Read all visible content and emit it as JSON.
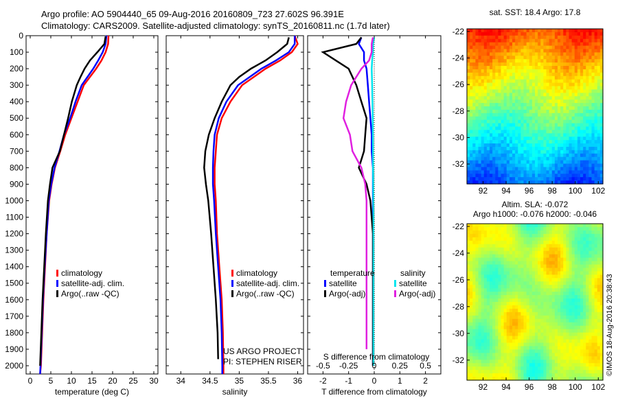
{
  "header": {
    "line1": "Argo profile: AO 5904440_65 09-Aug-2016 20160809_723 27.602S 96.391E",
    "line2": "Climatology: CARS2009. Satellite-adjusted climatology: synTS_20160811.nc (1.7d later)"
  },
  "colors": {
    "climatology": "#ff0000",
    "satellite": "#0000ff",
    "argo": "#000000",
    "satellite_s": "#00e5ee",
    "argo_s": "#e020e0"
  },
  "depth_axis": {
    "ylim": [
      0,
      2050
    ],
    "ticks": [
      0,
      100,
      200,
      300,
      400,
      500,
      600,
      700,
      800,
      900,
      1000,
      1100,
      1200,
      1300,
      1400,
      1500,
      1600,
      1700,
      1800,
      1900,
      2000
    ]
  },
  "chart_data": [
    {
      "id": "temp",
      "type": "line",
      "xlabel": "temperature (deg C)",
      "xlim": [
        -1,
        31
      ],
      "xticks": [
        0,
        5,
        10,
        15,
        20,
        25,
        30
      ],
      "xticklabels": [
        "0",
        "5",
        "10",
        "15",
        "20",
        "25",
        "30"
      ],
      "legend": [
        "climatology",
        "satellite-adj. clim.",
        "Argo(..raw -QC)"
      ],
      "series": [
        {
          "name": "climatology",
          "color": "#ff0000",
          "x": [
            19.0,
            18.9,
            18.3,
            17.3,
            16.0,
            14.5,
            13.0,
            11.5,
            10.0,
            8.5,
            7.3,
            6.0,
            5.2,
            4.6,
            4.0,
            3.6,
            3.2,
            2.9,
            2.6,
            2.4
          ],
          "y": [
            0,
            50,
            100,
            150,
            200,
            250,
            300,
            400,
            500,
            600,
            700,
            800,
            900,
            1000,
            1200,
            1400,
            1600,
            1800,
            2000,
            2050
          ]
        },
        {
          "name": "satellite-adj. clim.",
          "color": "#0000ff",
          "x": [
            18.5,
            18.3,
            17.6,
            16.5,
            15.3,
            13.9,
            12.5,
            11.0,
            9.7,
            8.2,
            7.1,
            5.9,
            5.1,
            4.5,
            4.0,
            3.5,
            3.1,
            2.8,
            2.5,
            2.4
          ],
          "y": [
            0,
            50,
            100,
            150,
            200,
            250,
            300,
            400,
            500,
            600,
            700,
            800,
            900,
            1000,
            1200,
            1400,
            1600,
            1800,
            2000,
            2050
          ]
        },
        {
          "name": "Argo(..raw -QC)",
          "color": "#000000",
          "x": [
            18.3,
            18.0,
            16.3,
            14.5,
            13.2,
            12.2,
            11.3,
            10.1,
            9.2,
            8.2,
            7.2,
            5.4,
            4.8,
            4.3,
            3.8,
            3.4,
            3.0,
            2.7,
            2.4
          ],
          "y": [
            5,
            50,
            100,
            150,
            200,
            250,
            300,
            400,
            500,
            600,
            700,
            800,
            900,
            1000,
            1200,
            1400,
            1600,
            1800,
            2000
          ]
        }
      ]
    },
    {
      "id": "sal",
      "type": "line",
      "xlabel": "salinity",
      "xlim": [
        33.75,
        36.1
      ],
      "xticks": [
        34,
        34.5,
        35,
        35.5,
        36
      ],
      "xticklabels": [
        "34",
        "34.5",
        "35",
        "35.5",
        "36"
      ],
      "legend": [
        "climatology",
        "satellite-adj. clim.",
        "Argo(..raw -QC)"
      ],
      "annotation": [
        "US ARGO PROJECT",
        "PI: STEPHEN RISER"
      ],
      "series": [
        {
          "name": "climatology",
          "color": "#ff0000",
          "x": [
            35.95,
            36.0,
            35.9,
            35.7,
            35.45,
            35.25,
            35.05,
            34.85,
            34.7,
            34.62,
            34.6,
            34.58,
            34.58,
            34.6,
            34.62,
            34.66,
            34.7,
            34.72,
            34.73,
            34.73
          ],
          "y": [
            0,
            50,
            100,
            150,
            200,
            250,
            300,
            400,
            500,
            600,
            700,
            800,
            900,
            1000,
            1200,
            1400,
            1600,
            1800,
            2000,
            2050
          ]
        },
        {
          "name": "satellite-adj. clim.",
          "color": "#0000ff",
          "x": [
            35.95,
            35.95,
            35.85,
            35.63,
            35.38,
            35.18,
            34.98,
            34.78,
            34.65,
            34.58,
            34.56,
            34.55,
            34.55,
            34.57,
            34.6,
            34.64,
            34.68,
            34.7,
            34.71,
            34.71
          ],
          "y": [
            0,
            50,
            100,
            150,
            200,
            250,
            300,
            400,
            500,
            600,
            700,
            800,
            900,
            1000,
            1200,
            1400,
            1600,
            1800,
            2000,
            2050
          ]
        },
        {
          "name": "Argo(..raw -QC)",
          "color": "#000000",
          "x": [
            35.85,
            35.82,
            35.65,
            35.45,
            35.2,
            35.0,
            34.85,
            34.7,
            34.58,
            34.48,
            34.42,
            34.4,
            34.43,
            34.47,
            34.52,
            34.56,
            34.6,
            34.63,
            34.64
          ],
          "y": [
            10,
            50,
            100,
            150,
            200,
            250,
            300,
            400,
            500,
            600,
            700,
            800,
            900,
            1000,
            1200,
            1400,
            1600,
            1800,
            1960
          ]
        }
      ]
    },
    {
      "id": "diff",
      "type": "line",
      "xlabel": "T difference from climatology",
      "xlabel_top": "S difference from climatology",
      "xlim": [
        -2.6,
        2.6
      ],
      "xticks": [
        -2,
        -1,
        0,
        1,
        2
      ],
      "xticklabels": [
        "-2",
        "-1",
        "0",
        "1",
        "2"
      ],
      "s_xticks": [
        -2,
        -1,
        0,
        1,
        2
      ],
      "s_xticklabels": [
        "-0.5",
        "-0.25",
        "0",
        "0.25",
        "0.5"
      ],
      "legend_titles": [
        "temperature",
        "salinity"
      ],
      "legend_t": [
        "satellite",
        "Argo(-adj)"
      ],
      "legend_s": [
        "satellite",
        "Argo(-adj)"
      ],
      "series": [
        {
          "name": "T satellite",
          "color": "#0000ff",
          "x": [
            -0.5,
            -0.6,
            -0.4,
            -0.4,
            -0.3,
            -0.25,
            -0.2,
            -0.15,
            -0.1,
            -0.1,
            -0.05,
            -0.05,
            -0.05,
            -0.05,
            -0.05,
            -0.05,
            -0.05
          ],
          "y": [
            10,
            50,
            100,
            150,
            200,
            300,
            400,
            500,
            600,
            700,
            800,
            1000,
            1200,
            1400,
            1600,
            1800,
            2000
          ]
        },
        {
          "name": "T Argo(-adj)",
          "color": "#000000",
          "x": [
            -0.5,
            -0.7,
            -2.0,
            -1.5,
            -1.0,
            -0.7,
            -0.5,
            -0.3,
            -0.35,
            -0.4,
            -0.6,
            -0.3,
            -0.15,
            -0.05,
            -0.05,
            -0.05,
            -0.05,
            -0.05
          ],
          "y": [
            10,
            50,
            100,
            150,
            200,
            300,
            400,
            500,
            600,
            700,
            800,
            900,
            1000,
            1200,
            1400,
            1600,
            1800,
            2000
          ]
        },
        {
          "name": "S satellite",
          "color": "#00e5ee",
          "x": [
            0.0,
            -0.05,
            -0.05,
            -0.08,
            -0.1,
            -0.08,
            -0.06,
            -0.05,
            -0.04,
            -0.03,
            -0.03,
            -0.03,
            -0.03,
            -0.03
          ],
          "y": [
            10,
            50,
            100,
            150,
            200,
            300,
            500,
            700,
            900,
            1100,
            1300,
            1500,
            1800,
            2000
          ]
        },
        {
          "name": "S Argo(-adj)",
          "color": "#e020e0",
          "x": [
            -0.05,
            -0.1,
            -0.1,
            -0.2,
            -0.5,
            -0.9,
            -1.1,
            -1.2,
            -0.95,
            -0.85,
            -0.5,
            -0.35,
            -0.3,
            -0.3,
            -0.3,
            -0.3,
            -0.3
          ],
          "y": [
            10,
            50,
            100,
            150,
            200,
            300,
            400,
            500,
            600,
            700,
            800,
            900,
            1000,
            1200,
            1400,
            1600,
            1900
          ]
        }
      ]
    },
    {
      "id": "sst_map",
      "type": "heatmap",
      "title": "sat. SST: 18.4  Argo: 17.8",
      "xticks": [
        92,
        94,
        96,
        98,
        100,
        102
      ],
      "xlim": [
        90.6,
        102.4
      ],
      "yticks": [
        -22,
        -24,
        -26,
        -28,
        -30,
        -32
      ],
      "ylim": [
        -33.5,
        -21.8
      ]
    },
    {
      "id": "sla_map",
      "type": "heatmap",
      "title1": "Altim. SLA: -0.072",
      "title2": "Argo h1000: -0.076 h2000: -0.046",
      "xticks": [
        92,
        94,
        96,
        98,
        100,
        102
      ],
      "xlim": [
        90.6,
        102.4
      ],
      "yticks": [
        -22,
        -24,
        -26,
        -28,
        -30,
        -32
      ],
      "ylim": [
        -33.5,
        -21.8
      ]
    }
  ],
  "footer_stamp": "©IMOS 18-Aug-2016 20:38:43"
}
